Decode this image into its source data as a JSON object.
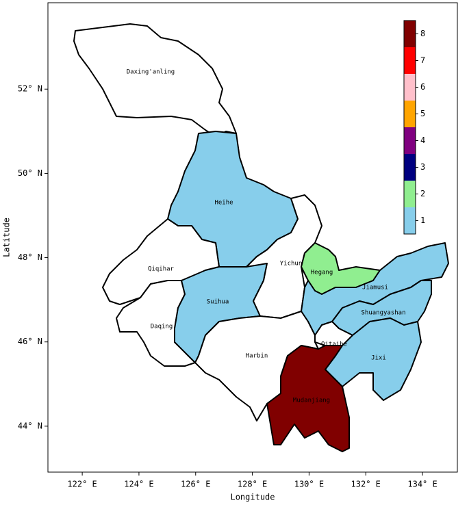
{
  "chart_data": {
    "type": "choropleth",
    "x_label": "Longitude",
    "y_label": "Latitude",
    "xlim": [
      120.79,
      135.23
    ],
    "ylim": [
      42.91,
      54.05
    ],
    "xticks": [
      {
        "value": 122,
        "label": "122° E"
      },
      {
        "value": 124,
        "label": "124° E"
      },
      {
        "value": 126,
        "label": "126° E"
      },
      {
        "value": 128,
        "label": "128° E"
      },
      {
        "value": 130,
        "label": "130° E"
      },
      {
        "value": 132,
        "label": "132° E"
      },
      {
        "value": 134,
        "label": "134° E"
      }
    ],
    "yticks": [
      {
        "value": 44,
        "label": "44° N"
      },
      {
        "value": 46,
        "label": "46° N"
      },
      {
        "value": 48,
        "label": "48° N"
      },
      {
        "value": 50,
        "label": "50° N"
      },
      {
        "value": 52,
        "label": "52° N"
      }
    ],
    "regions": [
      {
        "name": "Daxing'anling",
        "value": null
      },
      {
        "name": "Heihe",
        "value": 1
      },
      {
        "name": "Qiqihar",
        "value": null
      },
      {
        "name": "Daqing",
        "value": null
      },
      {
        "name": "Suihua",
        "value": 1
      },
      {
        "name": "Yichun",
        "value": null
      },
      {
        "name": "Hegang",
        "value": 2
      },
      {
        "name": "Jiamusi",
        "value": 1
      },
      {
        "name": "Shuangyashan",
        "value": 1
      },
      {
        "name": "Qitaihe",
        "value": null
      },
      {
        "name": "Jixi",
        "value": 1
      },
      {
        "name": "Harbin",
        "value": null
      },
      {
        "name": "Mudanjiang",
        "value": 8
      }
    ],
    "colorbar": {
      "ticks": [
        1,
        2,
        3,
        4,
        5,
        6,
        7,
        8
      ],
      "colors": [
        "#87ceeb",
        "#90ee90",
        "#000080",
        "#800080",
        "#ffa500",
        "#ffc0cb",
        "#ff0000",
        "#800000"
      ]
    }
  }
}
